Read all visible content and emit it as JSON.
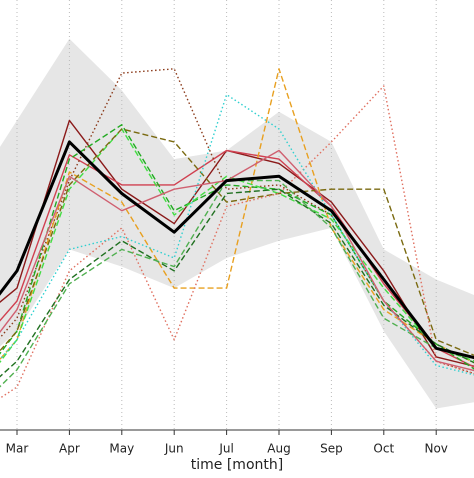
{
  "chart_data": {
    "type": "line",
    "xlabel": "time [month]",
    "categories": [
      null,
      "Mar",
      "Apr",
      "May",
      "Jun",
      "Jul",
      "Aug",
      "Sep",
      "Oct",
      "Nov",
      null
    ],
    "ylim": [
      0,
      100
    ],
    "grid": true,
    "band": {
      "color": "#e6e6e6",
      "upper": [
        53,
        72,
        91,
        79,
        63,
        65,
        74,
        67,
        42,
        35,
        30
      ],
      "lower": [
        12,
        23,
        42,
        38,
        33,
        40,
        44,
        47,
        23,
        5,
        7
      ]
    },
    "series": [
      {
        "color": "#8b1a1a",
        "style": "solid",
        "values": [
          23,
          33,
          72,
          56,
          48,
          65,
          62,
          53,
          37,
          17,
          14
        ]
      },
      {
        "color": "#d04050",
        "style": "solid",
        "values": [
          16,
          30,
          64,
          57,
          57,
          65,
          63,
          52,
          34,
          19,
          13
        ]
      },
      {
        "color": "#8b3a1a",
        "style": "dotted",
        "values": [
          12,
          26,
          58,
          83,
          84,
          56,
          57,
          50,
          30,
          16,
          12
        ]
      },
      {
        "color": "#e8a020",
        "style": "dashed",
        "values": [
          7,
          21,
          60,
          53,
          33,
          33,
          84,
          47,
          28,
          20,
          14
        ]
      },
      {
        "color": "#22aa22",
        "style": "dashed",
        "values": [
          7,
          23,
          63,
          71,
          51,
          57,
          56,
          50,
          30,
          20,
          12
        ]
      },
      {
        "color": "#44dd44",
        "style": "dashed",
        "values": [
          5,
          21,
          56,
          70,
          50,
          59,
          55,
          49,
          33,
          19,
          15
        ]
      },
      {
        "color": "#7a6a10",
        "style": "dashed",
        "values": [
          9,
          23,
          57,
          70,
          67,
          53,
          55,
          56,
          56,
          21,
          16
        ]
      },
      {
        "color": "#e07060",
        "style": "dotted",
        "values": [
          2,
          10,
          37,
          47,
          21,
          52,
          55,
          67,
          80,
          16,
          12
        ]
      },
      {
        "color": "#30d0d0",
        "style": "dotted",
        "values": [
          7,
          21,
          42,
          45,
          40,
          78,
          70,
          50,
          30,
          15,
          12
        ]
      },
      {
        "color": "#207020",
        "style": "dashed",
        "values": [
          5,
          16,
          35,
          44,
          37,
          55,
          56,
          48,
          29,
          20,
          14
        ]
      },
      {
        "color": "#d06070",
        "style": "solid",
        "values": [
          12,
          28,
          59,
          51,
          56,
          58,
          65,
          52,
          30,
          16,
          13
        ]
      },
      {
        "color": "#50b050",
        "style": "dashed",
        "values": [
          2,
          14,
          34,
          42,
          38,
          58,
          58,
          47,
          26,
          19,
          16
        ]
      },
      {
        "color": "#000000",
        "style": "solid",
        "width": 3,
        "values": [
          21,
          37,
          67,
          55,
          46,
          58,
          59,
          51,
          35,
          19,
          16
        ]
      }
    ]
  }
}
